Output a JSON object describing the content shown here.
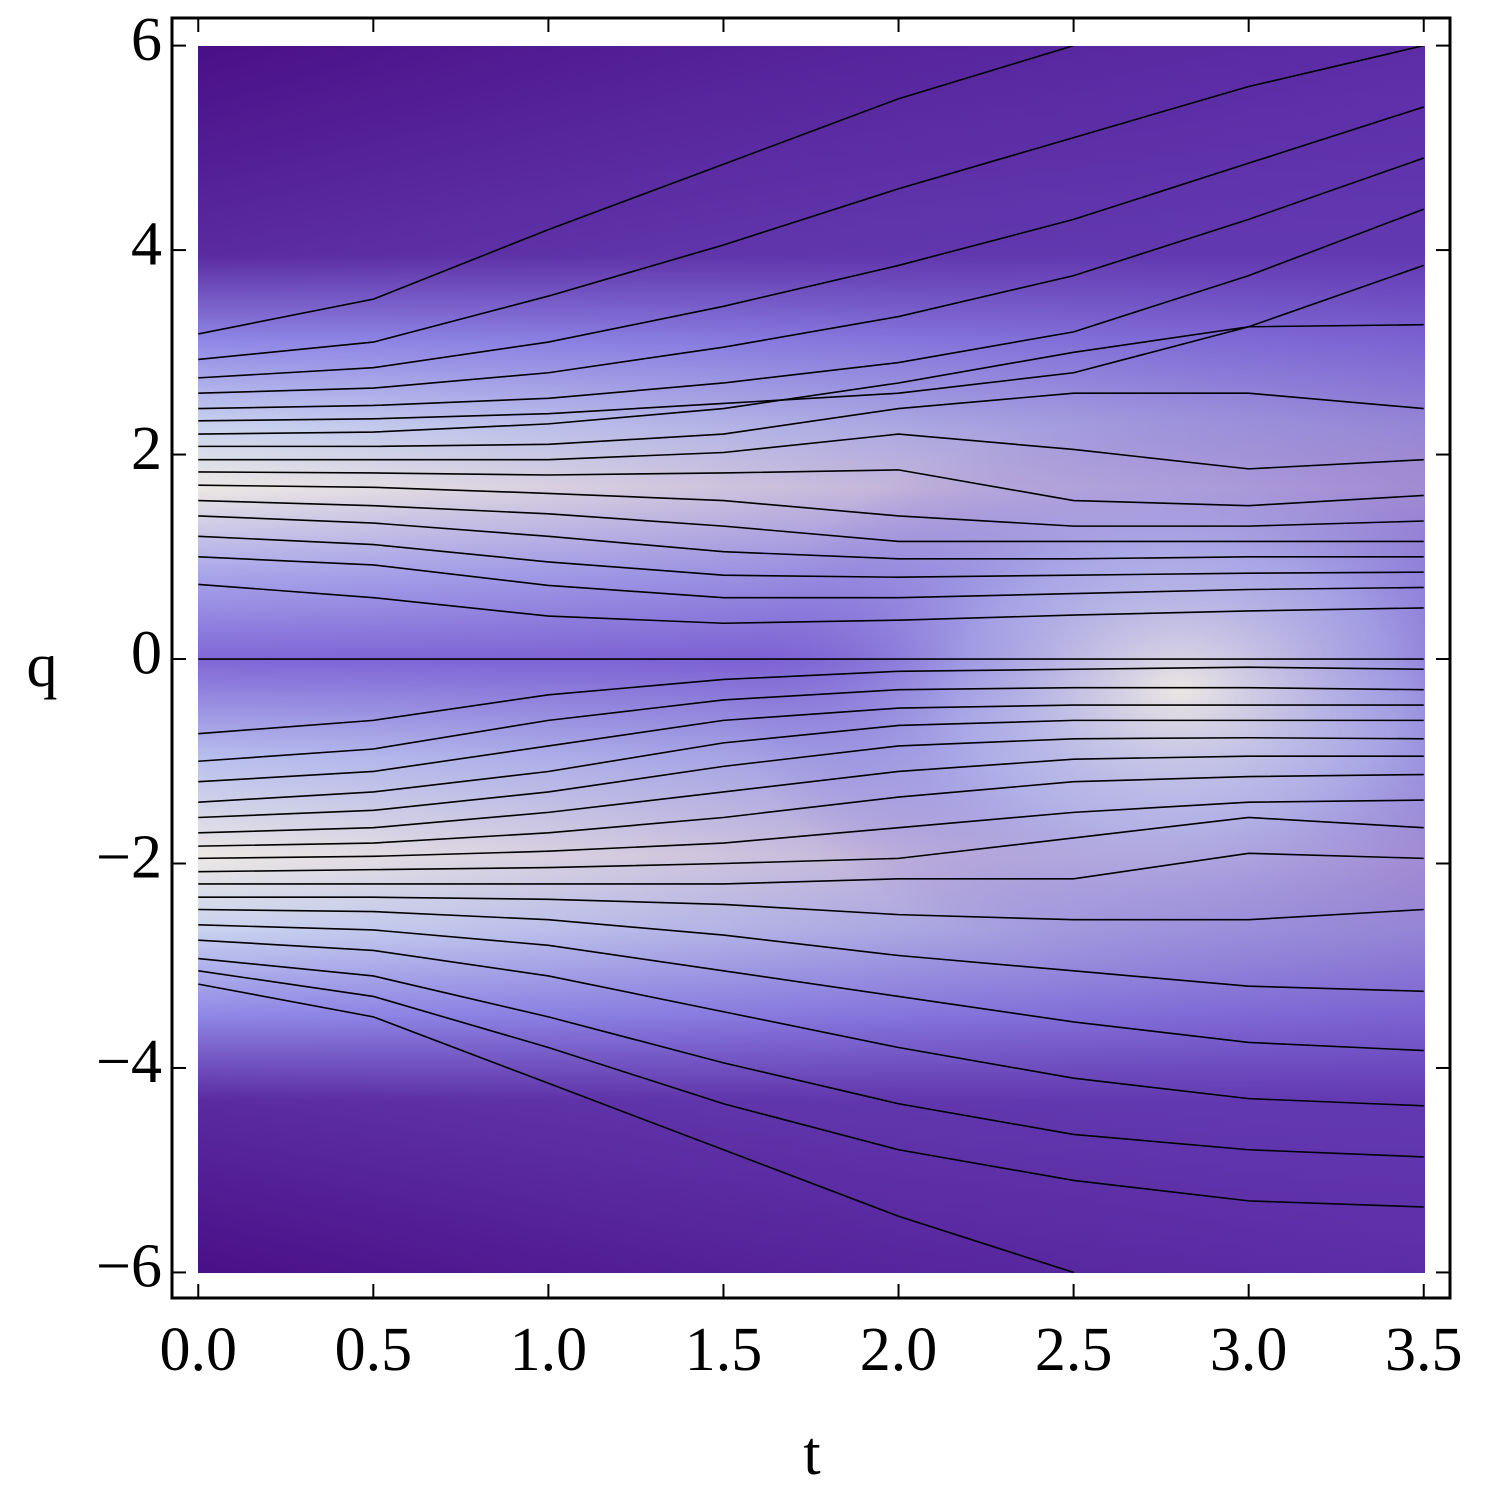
{
  "chart_data": {
    "type": "line",
    "x_label": "t",
    "y_label": "q",
    "xlim": [
      -0.075,
      3.575
    ],
    "ylim": [
      -6.25,
      6.27
    ],
    "xticks": [
      {
        "value": 0,
        "label": "0.0"
      },
      {
        "value": 0.5,
        "label": "0.5"
      },
      {
        "value": 1,
        "label": "1.0"
      },
      {
        "value": 1.5,
        "label": "1.5"
      },
      {
        "value": 2,
        "label": "2.0"
      },
      {
        "value": 2.5,
        "label": "2.5"
      },
      {
        "value": 3,
        "label": "3.0"
      },
      {
        "value": 3.5,
        "label": "3.5"
      }
    ],
    "yticks": [
      {
        "value": -6,
        "label": "−6"
      },
      {
        "value": -4,
        "label": "−4"
      },
      {
        "value": -2,
        "label": "−2"
      },
      0,
      2,
      4,
      6
    ],
    "color": "#000000",
    "x": [
      0,
      0.5,
      1,
      1.5,
      2,
      2.5,
      3,
      3.5
    ],
    "series": [
      {
        "values": [
          3.18,
          3.52,
          4.2,
          4.84,
          5.48,
          6.0,
          null,
          null
        ]
      },
      {
        "values": [
          2.93,
          3.1,
          3.55,
          4.05,
          4.6,
          5.1,
          5.6,
          6.0
        ]
      },
      {
        "values": [
          2.75,
          2.85,
          3.1,
          3.45,
          3.85,
          4.3,
          4.85,
          5.4
        ]
      },
      {
        "values": [
          2.6,
          2.65,
          2.8,
          3.05,
          3.35,
          3.75,
          4.3,
          4.9
        ]
      },
      {
        "values": [
          2.45,
          2.48,
          2.55,
          2.7,
          2.9,
          3.2,
          3.75,
          4.4
        ]
      },
      {
        "values": [
          2.33,
          2.35,
          2.4,
          2.5,
          2.6,
          2.8,
          3.25,
          3.85
        ]
      },
      {
        "values": [
          2.2,
          2.22,
          2.3,
          2.45,
          2.7,
          3.0,
          3.25,
          3.27
        ]
      },
      {
        "values": [
          2.08,
          2.08,
          2.1,
          2.2,
          2.45,
          2.6,
          2.6,
          2.45
        ]
      },
      {
        "values": [
          1.95,
          1.95,
          1.95,
          2.02,
          2.2,
          2.05,
          1.86,
          1.95
        ]
      },
      {
        "values": [
          1.83,
          1.82,
          1.8,
          1.82,
          1.85,
          1.55,
          1.5,
          1.6
        ]
      },
      {
        "values": [
          1.7,
          1.68,
          1.62,
          1.55,
          1.4,
          1.3,
          1.3,
          1.35
        ]
      },
      {
        "values": [
          1.55,
          1.5,
          1.42,
          1.3,
          1.15,
          1.15,
          1.15,
          1.15
        ]
      },
      {
        "values": [
          1.4,
          1.33,
          1.2,
          1.05,
          0.98,
          0.98,
          1.0,
          1.0
        ]
      },
      {
        "values": [
          1.2,
          1.12,
          0.95,
          0.82,
          0.8,
          0.82,
          0.84,
          0.85
        ]
      },
      {
        "values": [
          1.0,
          0.92,
          0.72,
          0.6,
          0.6,
          0.64,
          0.68,
          0.7
        ]
      },
      {
        "values": [
          0.73,
          0.6,
          0.42,
          0.35,
          0.38,
          0.43,
          0.47,
          0.5
        ]
      },
      {
        "values": [
          0,
          0,
          0,
          0,
          0,
          0,
          0,
          0
        ]
      },
      {
        "values": [
          -0.73,
          -0.6,
          -0.35,
          -0.2,
          -0.12,
          -0.1,
          -0.08,
          -0.1
        ]
      },
      {
        "values": [
          -1.0,
          -0.88,
          -0.6,
          -0.4,
          -0.3,
          -0.28,
          -0.28,
          -0.3
        ]
      },
      {
        "values": [
          -1.2,
          -1.1,
          -0.85,
          -0.6,
          -0.48,
          -0.45,
          -0.45,
          -0.45
        ]
      },
      {
        "values": [
          -1.4,
          -1.3,
          -1.1,
          -0.82,
          -0.65,
          -0.6,
          -0.6,
          -0.6
        ]
      },
      {
        "values": [
          -1.55,
          -1.48,
          -1.3,
          -1.05,
          -0.85,
          -0.78,
          -0.77,
          -0.78
        ]
      },
      {
        "values": [
          -1.7,
          -1.65,
          -1.5,
          -1.3,
          -1.1,
          -0.98,
          -0.95,
          -0.95
        ]
      },
      {
        "values": [
          -1.83,
          -1.8,
          -1.7,
          -1.55,
          -1.35,
          -1.2,
          -1.15,
          -1.13
        ]
      },
      {
        "values": [
          -1.95,
          -1.93,
          -1.88,
          -1.8,
          -1.65,
          -1.5,
          -1.4,
          -1.38
        ]
      },
      {
        "values": [
          -2.08,
          -2.06,
          -2.04,
          -2.0,
          -1.95,
          -1.75,
          -1.55,
          -1.65
        ]
      },
      {
        "values": [
          -2.2,
          -2.2,
          -2.2,
          -2.2,
          -2.15,
          -2.15,
          -1.9,
          -1.95
        ]
      },
      {
        "values": [
          -2.33,
          -2.33,
          -2.35,
          -2.4,
          -2.5,
          -2.55,
          -2.55,
          -2.45
        ]
      },
      {
        "values": [
          -2.45,
          -2.47,
          -2.55,
          -2.7,
          -2.9,
          -3.05,
          -3.2,
          -3.25
        ]
      },
      {
        "values": [
          -2.6,
          -2.65,
          -2.8,
          -3.05,
          -3.3,
          -3.55,
          -3.75,
          -3.83
        ]
      },
      {
        "values": [
          -2.75,
          -2.85,
          -3.1,
          -3.45,
          -3.8,
          -4.1,
          -4.3,
          -4.37
        ]
      },
      {
        "values": [
          -2.93,
          -3.1,
          -3.5,
          -3.95,
          -4.35,
          -4.65,
          -4.8,
          -4.87
        ]
      },
      {
        "values": [
          -3.05,
          -3.3,
          -3.8,
          -4.35,
          -4.8,
          -5.1,
          -5.3,
          -5.36
        ]
      },
      {
        "values": [
          -3.18,
          -3.5,
          -4.15,
          -4.8,
          -5.45,
          -6.0,
          null,
          null
        ]
      }
    ]
  }
}
